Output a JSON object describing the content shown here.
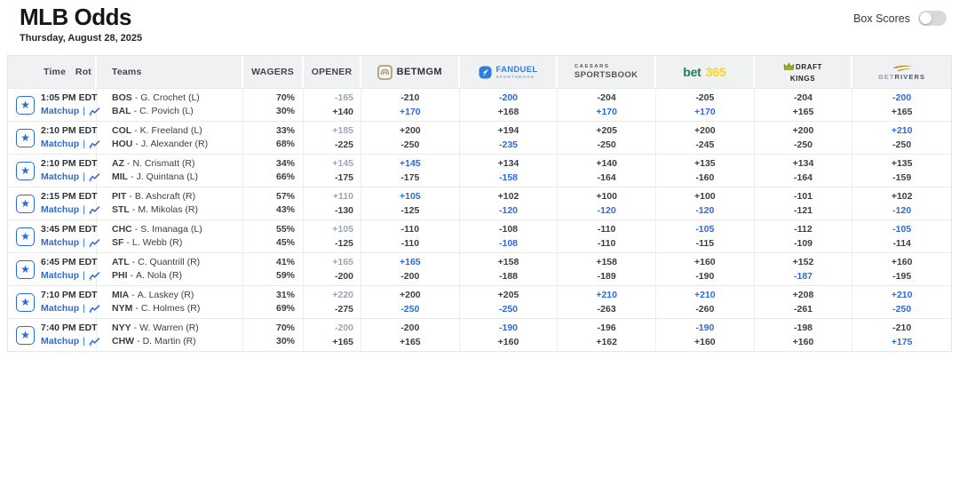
{
  "page": {
    "title": "MLB Odds",
    "date": "Thursday, August 28, 2025"
  },
  "box_scores": {
    "label": "Box Scores",
    "enabled": false
  },
  "labels": {
    "matchup": "Matchup",
    "pipe": "|",
    "team_sep": "-"
  },
  "header": {
    "time": "Time",
    "rot": "Rot",
    "teams": "Teams",
    "wagers": "WAGERS",
    "opener": "OPENER",
    "books": {
      "betmgm": {
        "bet": "BET",
        "mgm": "MGM"
      },
      "fanduel": {
        "name": "FANDUEL",
        "sub": "SPORTSBOOK"
      },
      "caesars": {
        "top": "CAESARS",
        "bottom": "SPORTSBOOK"
      },
      "bet365": {
        "bet": "bet",
        "num": "365"
      },
      "draftkings": {
        "top": "DRAFT",
        "bottom": "KINGS"
      },
      "betrivers": {
        "bet": "BET",
        "rivers": "RIVERS"
      }
    }
  },
  "colors": {
    "accent_blue": "#2c6bd7",
    "best_odds_blue": "#2c6bd7",
    "opener_muted": "#9aa5b8",
    "text_dark": "#3a3e45",
    "betmgm_gold": "#ab9362",
    "fanduel_blue": "#2b7de0",
    "caesars_gray": "#57544b",
    "bet365_green": "#17805a",
    "bet365_yellow": "#fcd92c",
    "draftkings_crown": "#9bb024",
    "betrivers_amber": "#c8922d"
  },
  "games": [
    {
      "time": "1:05 PM EDT",
      "away": {
        "abbr": "BOS",
        "pitcher": "G. Crochet (L)"
      },
      "home": {
        "abbr": "BAL",
        "pitcher": "C. Povich (L)"
      },
      "wagers": [
        "70%",
        "30%"
      ],
      "odds": {
        "opener": [
          {
            "v": "-165",
            "c": "muted"
          },
          {
            "v": "+140",
            "c": "dark"
          }
        ],
        "betmgm": [
          {
            "v": "-210",
            "c": "dark"
          },
          {
            "v": "+170",
            "c": "blue"
          }
        ],
        "fanduel": [
          {
            "v": "-200",
            "c": "blue"
          },
          {
            "v": "+168",
            "c": "dark"
          }
        ],
        "caesars": [
          {
            "v": "-204",
            "c": "dark"
          },
          {
            "v": "+170",
            "c": "blue"
          }
        ],
        "bet365": [
          {
            "v": "-205",
            "c": "dark"
          },
          {
            "v": "+170",
            "c": "blue"
          }
        ],
        "draftkings": [
          {
            "v": "-204",
            "c": "dark"
          },
          {
            "v": "+165",
            "c": "dark"
          }
        ],
        "betrivers": [
          {
            "v": "-200",
            "c": "blue"
          },
          {
            "v": "+165",
            "c": "dark"
          }
        ]
      }
    },
    {
      "time": "2:10 PM EDT",
      "away": {
        "abbr": "COL",
        "pitcher": "K. Freeland (L)"
      },
      "home": {
        "abbr": "HOU",
        "pitcher": "J. Alexander (R)"
      },
      "wagers": [
        "33%",
        "68%"
      ],
      "odds": {
        "opener": [
          {
            "v": "+185",
            "c": "muted"
          },
          {
            "v": "-225",
            "c": "dark"
          }
        ],
        "betmgm": [
          {
            "v": "+200",
            "c": "dark"
          },
          {
            "v": "-250",
            "c": "dark"
          }
        ],
        "fanduel": [
          {
            "v": "+194",
            "c": "dark"
          },
          {
            "v": "-235",
            "c": "blue"
          }
        ],
        "caesars": [
          {
            "v": "+205",
            "c": "dark"
          },
          {
            "v": "-250",
            "c": "dark"
          }
        ],
        "bet365": [
          {
            "v": "+200",
            "c": "dark"
          },
          {
            "v": "-245",
            "c": "dark"
          }
        ],
        "draftkings": [
          {
            "v": "+200",
            "c": "dark"
          },
          {
            "v": "-250",
            "c": "dark"
          }
        ],
        "betrivers": [
          {
            "v": "+210",
            "c": "blue"
          },
          {
            "v": "-250",
            "c": "dark"
          }
        ]
      }
    },
    {
      "time": "2:10 PM EDT",
      "away": {
        "abbr": "AZ",
        "pitcher": "N. Crismatt (R)"
      },
      "home": {
        "abbr": "MIL",
        "pitcher": "J. Quintana (L)"
      },
      "wagers": [
        "34%",
        "66%"
      ],
      "odds": {
        "opener": [
          {
            "v": "+145",
            "c": "muted"
          },
          {
            "v": "-175",
            "c": "dark"
          }
        ],
        "betmgm": [
          {
            "v": "+145",
            "c": "blue"
          },
          {
            "v": "-175",
            "c": "dark"
          }
        ],
        "fanduel": [
          {
            "v": "+134",
            "c": "dark"
          },
          {
            "v": "-158",
            "c": "blue"
          }
        ],
        "caesars": [
          {
            "v": "+140",
            "c": "dark"
          },
          {
            "v": "-164",
            "c": "dark"
          }
        ],
        "bet365": [
          {
            "v": "+135",
            "c": "dark"
          },
          {
            "v": "-160",
            "c": "dark"
          }
        ],
        "draftkings": [
          {
            "v": "+134",
            "c": "dark"
          },
          {
            "v": "-164",
            "c": "dark"
          }
        ],
        "betrivers": [
          {
            "v": "+135",
            "c": "dark"
          },
          {
            "v": "-159",
            "c": "dark"
          }
        ]
      }
    },
    {
      "time": "2:15 PM EDT",
      "away": {
        "abbr": "PIT",
        "pitcher": "B. Ashcraft (R)"
      },
      "home": {
        "abbr": "STL",
        "pitcher": "M. Mikolas (R)"
      },
      "wagers": [
        "57%",
        "43%"
      ],
      "odds": {
        "opener": [
          {
            "v": "+110",
            "c": "muted"
          },
          {
            "v": "-130",
            "c": "dark"
          }
        ],
        "betmgm": [
          {
            "v": "+105",
            "c": "blue"
          },
          {
            "v": "-125",
            "c": "dark"
          }
        ],
        "fanduel": [
          {
            "v": "+102",
            "c": "dark"
          },
          {
            "v": "-120",
            "c": "blue"
          }
        ],
        "caesars": [
          {
            "v": "+100",
            "c": "dark"
          },
          {
            "v": "-120",
            "c": "blue"
          }
        ],
        "bet365": [
          {
            "v": "+100",
            "c": "dark"
          },
          {
            "v": "-120",
            "c": "blue"
          }
        ],
        "draftkings": [
          {
            "v": "-101",
            "c": "dark"
          },
          {
            "v": "-121",
            "c": "dark"
          }
        ],
        "betrivers": [
          {
            "v": "+102",
            "c": "dark"
          },
          {
            "v": "-120",
            "c": "blue"
          }
        ]
      }
    },
    {
      "time": "3:45 PM EDT",
      "away": {
        "abbr": "CHC",
        "pitcher": "S. Imanaga (L)"
      },
      "home": {
        "abbr": "SF",
        "pitcher": "L. Webb (R)"
      },
      "wagers": [
        "55%",
        "45%"
      ],
      "odds": {
        "opener": [
          {
            "v": "+105",
            "c": "muted"
          },
          {
            "v": "-125",
            "c": "dark"
          }
        ],
        "betmgm": [
          {
            "v": "-110",
            "c": "dark"
          },
          {
            "v": "-110",
            "c": "dark"
          }
        ],
        "fanduel": [
          {
            "v": "-108",
            "c": "dark"
          },
          {
            "v": "-108",
            "c": "blue"
          }
        ],
        "caesars": [
          {
            "v": "-110",
            "c": "dark"
          },
          {
            "v": "-110",
            "c": "dark"
          }
        ],
        "bet365": [
          {
            "v": "-105",
            "c": "blue"
          },
          {
            "v": "-115",
            "c": "dark"
          }
        ],
        "draftkings": [
          {
            "v": "-112",
            "c": "dark"
          },
          {
            "v": "-109",
            "c": "dark"
          }
        ],
        "betrivers": [
          {
            "v": "-105",
            "c": "blue"
          },
          {
            "v": "-114",
            "c": "dark"
          }
        ]
      }
    },
    {
      "time": "6:45 PM EDT",
      "away": {
        "abbr": "ATL",
        "pitcher": "C. Quantrill (R)"
      },
      "home": {
        "abbr": "PHI",
        "pitcher": "A. Nola (R)"
      },
      "wagers": [
        "41%",
        "59%"
      ],
      "odds": {
        "opener": [
          {
            "v": "+165",
            "c": "muted"
          },
          {
            "v": "-200",
            "c": "dark"
          }
        ],
        "betmgm": [
          {
            "v": "+165",
            "c": "blue"
          },
          {
            "v": "-200",
            "c": "dark"
          }
        ],
        "fanduel": [
          {
            "v": "+158",
            "c": "dark"
          },
          {
            "v": "-188",
            "c": "dark"
          }
        ],
        "caesars": [
          {
            "v": "+158",
            "c": "dark"
          },
          {
            "v": "-189",
            "c": "dark"
          }
        ],
        "bet365": [
          {
            "v": "+160",
            "c": "dark"
          },
          {
            "v": "-190",
            "c": "dark"
          }
        ],
        "draftkings": [
          {
            "v": "+152",
            "c": "dark"
          },
          {
            "v": "-187",
            "c": "blue"
          }
        ],
        "betrivers": [
          {
            "v": "+160",
            "c": "dark"
          },
          {
            "v": "-195",
            "c": "dark"
          }
        ]
      }
    },
    {
      "time": "7:10 PM EDT",
      "away": {
        "abbr": "MIA",
        "pitcher": "A. Laskey (R)"
      },
      "home": {
        "abbr": "NYM",
        "pitcher": "C. Holmes (R)"
      },
      "wagers": [
        "31%",
        "69%"
      ],
      "odds": {
        "opener": [
          {
            "v": "+220",
            "c": "muted"
          },
          {
            "v": "-275",
            "c": "dark"
          }
        ],
        "betmgm": [
          {
            "v": "+200",
            "c": "dark"
          },
          {
            "v": "-250",
            "c": "blue"
          }
        ],
        "fanduel": [
          {
            "v": "+205",
            "c": "dark"
          },
          {
            "v": "-250",
            "c": "blue"
          }
        ],
        "caesars": [
          {
            "v": "+210",
            "c": "blue"
          },
          {
            "v": "-263",
            "c": "dark"
          }
        ],
        "bet365": [
          {
            "v": "+210",
            "c": "blue"
          },
          {
            "v": "-260",
            "c": "dark"
          }
        ],
        "draftkings": [
          {
            "v": "+208",
            "c": "dark"
          },
          {
            "v": "-261",
            "c": "dark"
          }
        ],
        "betrivers": [
          {
            "v": "+210",
            "c": "blue"
          },
          {
            "v": "-250",
            "c": "blue"
          }
        ]
      }
    },
    {
      "time": "7:40 PM EDT",
      "away": {
        "abbr": "NYY",
        "pitcher": "W. Warren (R)"
      },
      "home": {
        "abbr": "CHW",
        "pitcher": "D. Martin (R)"
      },
      "wagers": [
        "70%",
        "30%"
      ],
      "odds": {
        "opener": [
          {
            "v": "-200",
            "c": "muted"
          },
          {
            "v": "+165",
            "c": "dark"
          }
        ],
        "betmgm": [
          {
            "v": "-200",
            "c": "dark"
          },
          {
            "v": "+165",
            "c": "dark"
          }
        ],
        "fanduel": [
          {
            "v": "-190",
            "c": "blue"
          },
          {
            "v": "+160",
            "c": "dark"
          }
        ],
        "caesars": [
          {
            "v": "-196",
            "c": "dark"
          },
          {
            "v": "+162",
            "c": "dark"
          }
        ],
        "bet365": [
          {
            "v": "-190",
            "c": "blue"
          },
          {
            "v": "+160",
            "c": "dark"
          }
        ],
        "draftkings": [
          {
            "v": "-198",
            "c": "dark"
          },
          {
            "v": "+160",
            "c": "dark"
          }
        ],
        "betrivers": [
          {
            "v": "-210",
            "c": "dark"
          },
          {
            "v": "+175",
            "c": "blue"
          }
        ]
      }
    }
  ]
}
